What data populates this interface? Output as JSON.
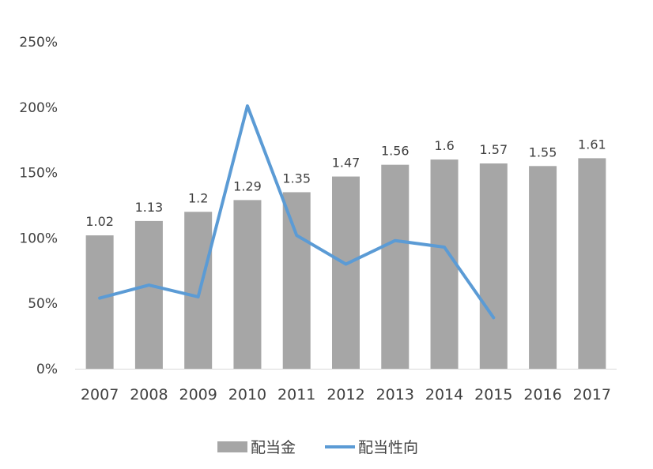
{
  "chart_data": {
    "type": "bar",
    "categories": [
      "2007",
      "2008",
      "2009",
      "2010",
      "2011",
      "2012",
      "2013",
      "2014",
      "2015",
      "2016",
      "2017"
    ],
    "y_ticks": [
      "0%",
      "50%",
      "100%",
      "150%",
      "200%",
      "250%"
    ],
    "ylim": [
      0,
      2.5
    ],
    "grid": false,
    "legend_position": "bottom",
    "series": [
      {
        "name": "配当金",
        "type": "bar",
        "color": "#a6a6a6",
        "values": [
          1.02,
          1.13,
          1.2,
          1.29,
          1.35,
          1.47,
          1.56,
          1.6,
          1.57,
          1.55,
          1.61
        ],
        "data_labels": [
          "1.02",
          "1.13",
          "1.2",
          "1.29",
          "1.35",
          "1.47",
          "1.56",
          "1.6",
          "1.57",
          "1.55",
          "1.61"
        ]
      },
      {
        "name": "配当性向",
        "type": "line",
        "color": "#5b9bd5",
        "values": [
          0.54,
          0.64,
          0.55,
          2.01,
          1.02,
          0.8,
          0.98,
          0.93,
          0.39,
          null,
          null
        ]
      }
    ]
  }
}
